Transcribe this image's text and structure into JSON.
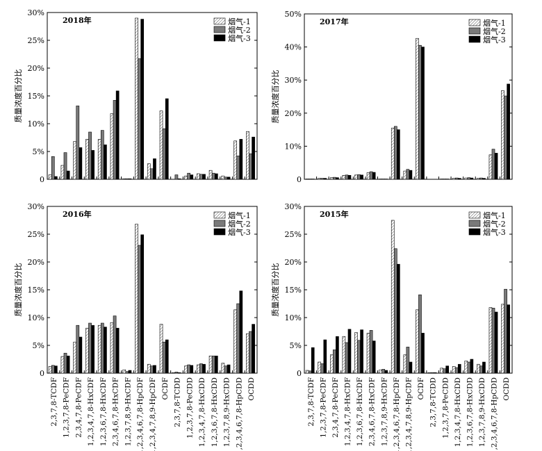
{
  "figure": {
    "xlabels_note": "shared congener labels under bottom panels"
  },
  "chart_data": [
    {
      "type": "bar",
      "title": "2018年",
      "ylabel": "质量浓度百分比",
      "ylim": [
        0,
        30
      ],
      "yticks": [
        "0",
        "5%",
        "10%",
        "15%",
        "20%",
        "25%",
        "30%"
      ],
      "legend": [
        "烟气-1",
        "烟气-2",
        "烟气-3"
      ],
      "legend_position": "top-right",
      "categories": [
        "2,3,7,8-TCDF",
        "1,2,3,7,8-PeCDF",
        "2,3,4,7,8-PeCDF",
        "1,2,3,4,7,8-HxCDF",
        "1,2,3,6,7,8-HxCDF",
        "2,3,4,6,7,8-HxCDF",
        "1,2,3,7,8,9-HxCDF",
        "1,2,3,4,6,7,8-HpCDF",
        "1,2,3,4,7,8,9-HpCDF",
        "OCDF",
        "2,3,7,8-TCDD",
        "1,2,3,7,8-PeCDD",
        "1,2,3,4,7,8-HxCDD",
        "1,2,3,6,7,8-HxCDD",
        "1,2,3,7,8,9-HxCDD",
        "1,2,3,4,6,7,8-HpCDD",
        "OCDD"
      ],
      "series": [
        {
          "name": "烟气-1",
          "values": [
            0.8,
            2.5,
            6.8,
            7.2,
            7.2,
            11.8,
            0.1,
            29.0,
            2.8,
            12.3,
            0.0,
            0.6,
            1.0,
            1.6,
            0.6,
            6.9,
            8.6
          ]
        },
        {
          "name": "烟气-2",
          "values": [
            4.1,
            4.8,
            13.2,
            8.5,
            8.8,
            14.2,
            0.1,
            21.7,
            1.9,
            9.1,
            0.8,
            1.1,
            0.9,
            1.1,
            0.4,
            4.2,
            4.6
          ]
        },
        {
          "name": "烟气-3",
          "values": [
            0.5,
            1.5,
            5.7,
            5.2,
            6.2,
            15.9,
            0.1,
            28.8,
            3.7,
            14.5,
            0.1,
            0.8,
            0.9,
            1.0,
            0.4,
            7.2,
            7.6
          ]
        }
      ]
    },
    {
      "type": "bar",
      "title": "2017年",
      "ylabel": "质量浓度百分比",
      "ylim": [
        0,
        50
      ],
      "yticks": [
        "0",
        "10%",
        "20%",
        "30%",
        "40%",
        "50%"
      ],
      "legend": [
        "烟气-1",
        "烟气-2",
        "烟气-3"
      ],
      "legend_position": "top-right",
      "categories": [
        "2,3,7,8-TCDF",
        "1,2,3,7,8-PeCDF",
        "2,3,4,7,8-PeCDF",
        "1,2,3,4,7,8-HxCDF",
        "1,2,3,6,7,8-HxCDF",
        "2,3,4,6,7,8-HxCDF",
        "1,2,3,7,8,9-HxCDF",
        "1,2,3,4,6,7,8-HpCDF",
        "1,2,3,4,7,8,9-HpCDF",
        "OCDF",
        "2,3,7,8-TCDD",
        "1,2,3,7,8-PeCDD",
        "1,2,3,4,7,8-HxCDD",
        "1,2,3,6,7,8-HxCDD",
        "1,2,3,7,8,9-HxCDD",
        "1,2,3,4,6,7,8-HpCDD",
        "OCDD"
      ],
      "series": [
        {
          "name": "烟气-1",
          "values": [
            0.1,
            0.3,
            0.5,
            1.2,
            1.3,
            2.0,
            0.1,
            15.5,
            2.5,
            42.6,
            0.0,
            0.1,
            0.3,
            0.4,
            0.3,
            7.4,
            26.8
          ]
        },
        {
          "name": "烟气-2",
          "values": [
            0.1,
            0.3,
            0.6,
            1.3,
            1.4,
            2.3,
            0.1,
            16.0,
            3.0,
            40.5,
            0.0,
            0.1,
            0.4,
            0.5,
            0.4,
            9.1,
            25.2
          ]
        },
        {
          "name": "烟气-3",
          "values": [
            0.1,
            0.3,
            0.5,
            1.2,
            1.3,
            2.1,
            0.1,
            15.0,
            2.7,
            40.0,
            0.0,
            0.1,
            0.3,
            0.4,
            0.3,
            7.9,
            28.8
          ]
        }
      ]
    },
    {
      "type": "bar",
      "title": "2016年",
      "ylabel": "质量浓度百分比",
      "ylim": [
        0,
        30
      ],
      "yticks": [
        "0",
        "5%",
        "10%",
        "15%",
        "20%",
        "25%",
        "30%"
      ],
      "legend": [
        "烟气-1",
        "烟气-2",
        "烟气-3"
      ],
      "legend_position": "top-right",
      "categories": [
        "2,3,7,8-TCDF",
        "1,2,3,7,8-PeCDF",
        "2,3,4,7,8-PeCDF",
        "1,2,3,4,7,8-HxCDF",
        "1,2,3,6,7,8-HxCDF",
        "2,3,4,6,7,8-HxCDF",
        "1,2,3,7,8,9-HxCDF",
        "1,2,3,4,6,7,8-HpCDF",
        "1,2,3,4,7,8,9-HpCDF",
        "OCDF",
        "2,3,7,8-TCDD",
        "1,2,3,7,8-PeCDD",
        "1,2,3,4,7,8-HxCDD",
        "1,2,3,6,7,8-HxCDD",
        "1,2,3,7,8,9-HxCDD",
        "1,2,3,4,6,7,8-HpCDD",
        "OCDD"
      ],
      "series": [
        {
          "name": "烟气-1",
          "values": [
            1.2,
            3.0,
            5.6,
            8.1,
            8.6,
            9.1,
            0.6,
            26.8,
            1.6,
            8.8,
            0.1,
            1.3,
            1.5,
            3.1,
            1.8,
            11.4,
            7.1
          ]
        },
        {
          "name": "烟气-2",
          "values": [
            1.4,
            3.6,
            8.6,
            9.0,
            9.0,
            10.3,
            0.3,
            23.0,
            1.3,
            5.6,
            0.2,
            1.5,
            1.7,
            3.1,
            1.3,
            12.5,
            7.5
          ]
        },
        {
          "name": "烟气-3",
          "values": [
            1.3,
            3.1,
            6.5,
            8.6,
            8.3,
            8.1,
            0.5,
            24.9,
            1.4,
            6.0,
            0.1,
            1.4,
            1.6,
            3.1,
            1.5,
            14.8,
            8.8
          ]
        }
      ]
    },
    {
      "type": "bar",
      "title": "2015年",
      "ylabel": "质量浓度百分比",
      "ylim": [
        0,
        30
      ],
      "yticks": [
        "0",
        "5%",
        "10%",
        "15%",
        "20%",
        "25%",
        "30%"
      ],
      "legend": [
        "烟气-1",
        "烟气-2",
        "烟气-3"
      ],
      "legend_position": "top-right",
      "categories": [
        "2,3,7,8-TCDF",
        "1,2,3,7,8-PeCDF",
        "2,3,4,7,8-PeCDF",
        "1,2,3,4,7,8-HxCDF",
        "1,2,3,6,7,8-HxCDF",
        "2,3,4,6,7,8-HxCDF",
        "1,2,3,7,8,9-HxCDF",
        "1,2,3,4,6,7,8-HpCDF",
        "1,2,3,4,7,8,9-HpCDF",
        "OCDF",
        "2,3,7,8-TCDD",
        "1,2,3,7,8-PeCDD",
        "1,2,3,4,7,8-HxCDD",
        "1,2,3,6,7,8-HxCDD",
        "1,2,3,7,8,9-HxCDD",
        "1,2,3,4,6,7,8-HpCDD",
        "OCDD"
      ],
      "series": [
        {
          "name": "烟气-1",
          "values": [
            0.5,
            2.0,
            3.3,
            6.6,
            7.3,
            7.2,
            0.6,
            27.5,
            3.3,
            11.4,
            0.1,
            0.9,
            1.2,
            2.2,
            1.6,
            11.8,
            12.4
          ]
        },
        {
          "name": "烟气-2",
          "values": [
            0.4,
            1.7,
            4.2,
            5.5,
            5.9,
            7.7,
            0.7,
            22.4,
            4.7,
            14.1,
            0.1,
            0.8,
            1.0,
            2.0,
            1.3,
            11.7,
            15.1
          ]
        },
        {
          "name": "烟气-3",
          "values": [
            4.6,
            6.0,
            6.6,
            7.9,
            7.8,
            5.8,
            0.5,
            19.6,
            2.0,
            7.2,
            0.1,
            1.3,
            1.6,
            2.5,
            2.0,
            11.0,
            12.3
          ]
        }
      ]
    }
  ]
}
